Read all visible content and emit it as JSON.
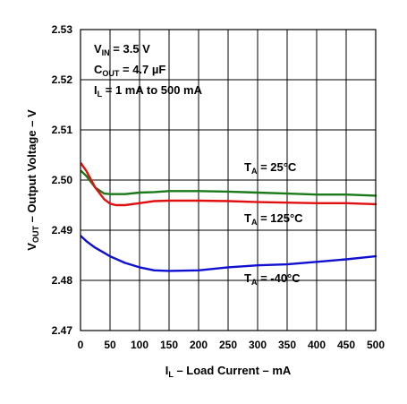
{
  "chart_data": {
    "type": "line",
    "xlabel_main": "I",
    "xlabel_sub": "L",
    "xlabel_rest": " – Load Current – mA",
    "ylabel_main": "V",
    "ylabel_sub": "OUT",
    "ylabel_rest": " – Output Voltage – V",
    "xlim": [
      0,
      500
    ],
    "ylim": [
      2.47,
      2.53
    ],
    "xticks": [
      0,
      50,
      100,
      150,
      200,
      250,
      300,
      350,
      400,
      450,
      500
    ],
    "yticks": [
      2.47,
      2.48,
      2.49,
      2.5,
      2.51,
      2.52,
      2.53
    ],
    "ytick_labels": [
      "2.47",
      "2.48",
      "2.49",
      "2.50",
      "2.51",
      "2.52",
      "2.53"
    ],
    "grid": true,
    "conditions": [
      {
        "main": "V",
        "sub": "IN",
        "rest": " =  3.5 V"
      },
      {
        "main": "C",
        "sub": "OUT",
        "rest": " = 4.7 µF"
      },
      {
        "main": "I",
        "sub": "L",
        "rest": " = 1 mA to 500 mA"
      }
    ],
    "series": [
      {
        "name": "T_A = 25°C",
        "label_main": "T",
        "label_sub": "A",
        "label_rest": " = 25°C",
        "color": "#1a7a1a",
        "x": [
          1,
          10,
          25,
          40,
          50,
          75,
          100,
          125,
          150,
          200,
          250,
          300,
          350,
          400,
          450,
          500
        ],
        "y": [
          2.5018,
          2.5008,
          2.4985,
          2.4973,
          2.4972,
          2.4972,
          2.4975,
          2.4976,
          2.4978,
          2.4978,
          2.4977,
          2.4975,
          2.4973,
          2.4971,
          2.4971,
          2.4969
        ]
      },
      {
        "name": "T_A = 125°C",
        "label_main": "T",
        "label_sub": "A",
        "label_rest": " = 125°C",
        "color": "#e01010",
        "x": [
          1,
          10,
          25,
          40,
          50,
          60,
          75,
          100,
          125,
          150,
          200,
          250,
          300,
          350,
          400,
          450,
          500
        ],
        "y": [
          2.5033,
          2.5018,
          2.4985,
          2.4962,
          2.4953,
          2.495,
          2.495,
          2.4954,
          2.4958,
          2.4959,
          2.4959,
          2.4958,
          2.4956,
          2.4955,
          2.4954,
          2.4954,
          2.4952
        ]
      },
      {
        "name": "T_A = -40°C",
        "label_main": "T",
        "label_sub": "A",
        "label_rest": " = -40°C",
        "color": "#1010d0",
        "x": [
          1,
          10,
          25,
          40,
          50,
          75,
          100,
          125,
          150,
          200,
          250,
          300,
          350,
          400,
          450,
          500
        ],
        "y": [
          2.4888,
          2.4878,
          2.4865,
          2.4855,
          2.4848,
          2.4835,
          2.4826,
          2.482,
          2.4819,
          2.482,
          2.4826,
          2.483,
          2.4832,
          2.4837,
          2.4842,
          2.4848
        ]
      }
    ]
  }
}
